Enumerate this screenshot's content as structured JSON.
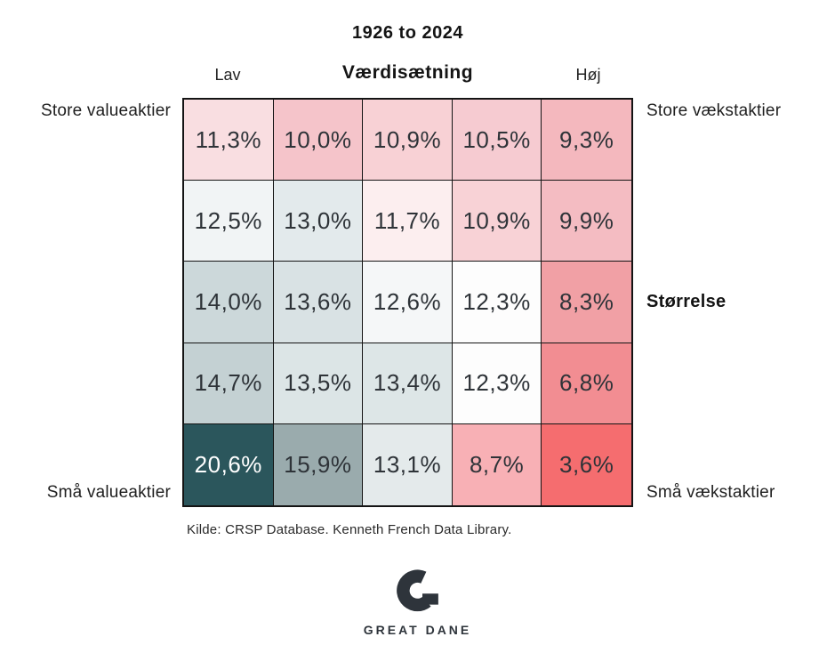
{
  "chart_data": {
    "type": "heatmap",
    "title": "1926 to 2024",
    "x_axis": {
      "title": "Værdisætning",
      "low": "Lav",
      "high": "Høj"
    },
    "y_axis": {
      "title": "Størrelse"
    },
    "corner_labels": {
      "top_left": "Store valueaktier",
      "top_right": "Store vækstaktier",
      "bottom_left": "Små valueaktier",
      "bottom_right": "Små vækstaktier"
    },
    "values": [
      [
        11.3,
        10.0,
        10.9,
        10.5,
        9.3
      ],
      [
        12.5,
        13.0,
        11.7,
        10.9,
        9.9
      ],
      [
        14.0,
        13.6,
        12.6,
        12.3,
        8.3
      ],
      [
        14.7,
        13.5,
        13.4,
        12.3,
        6.8
      ],
      [
        20.6,
        15.9,
        13.1,
        8.7,
        3.6
      ]
    ],
    "display": [
      [
        "11,3%",
        "10,0%",
        "10,9%",
        "10,5%",
        "9,3%"
      ],
      [
        "12,5%",
        "13,0%",
        "11,7%",
        "10,9%",
        "9,9%"
      ],
      [
        "14,0%",
        "13,6%",
        "12,6%",
        "12,3%",
        "8,3%"
      ],
      [
        "14,7%",
        "13,5%",
        "13,4%",
        "12,3%",
        "6,8%"
      ],
      [
        "20,6%",
        "15,9%",
        "13,1%",
        "8,7%",
        "3,6%"
      ]
    ],
    "cell_colors": [
      [
        "#f9dee1",
        "#f5c4ca",
        "#f8d1d5",
        "#f6cbd1",
        "#f4b8be"
      ],
      [
        "#f1f4f5",
        "#e3eaec",
        "#fceeef",
        "#f8d2d6",
        "#f4bcc2"
      ],
      [
        "#ccd8da",
        "#d9e2e4",
        "#f5f7f8",
        "#fdfdfd",
        "#f1a0a5"
      ],
      [
        "#c4d1d3",
        "#dce5e6",
        "#dde6e7",
        "#fdfdfd",
        "#f28d92"
      ],
      [
        "#2b565c",
        "#9aabad",
        "#e4eaeb",
        "#f8b0b5",
        "#f56d6f"
      ]
    ],
    "cell_text_colors": [
      [
        "#2e3338",
        "#2e3338",
        "#2e3338",
        "#2e3338",
        "#2e3338"
      ],
      [
        "#2e3338",
        "#2e3338",
        "#2e3338",
        "#2e3338",
        "#2e3338"
      ],
      [
        "#2e3338",
        "#2e3338",
        "#2e3338",
        "#2e3338",
        "#2e3338"
      ],
      [
        "#2e3338",
        "#2e3338",
        "#2e3338",
        "#2e3338",
        "#2e3338"
      ],
      [
        "#ffffff",
        "#2e3338",
        "#2e3338",
        "#2e3338",
        "#2e3338"
      ]
    ],
    "grid_line_color": "#141414",
    "legend": "none"
  },
  "source": "Kilde: CRSP Database. Kenneth French Data Library.",
  "logo": {
    "text": "GREAT DANE",
    "color": "#2e343b"
  }
}
